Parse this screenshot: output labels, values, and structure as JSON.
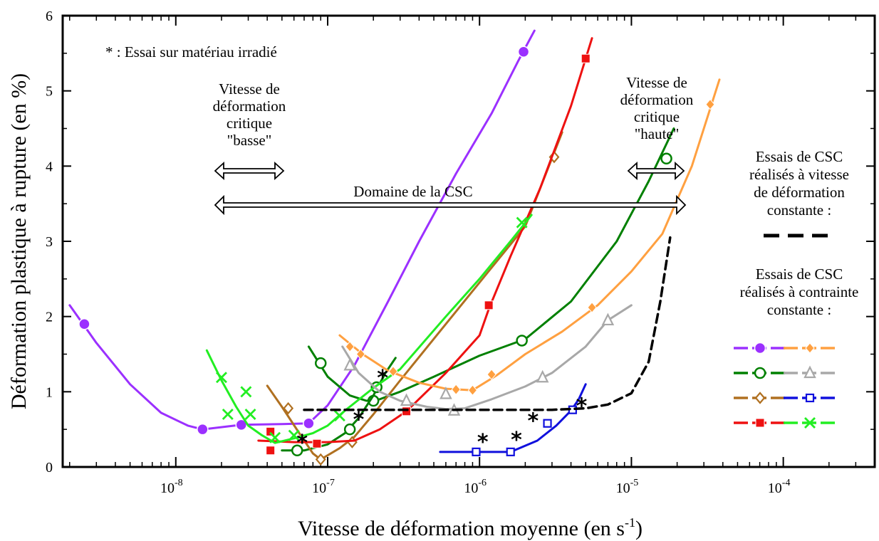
{
  "chart_data": {
    "type": "scatter",
    "title": "",
    "xlabel": "Vitesse de déformation moyenne (en s",
    "xlabel_sup": "-1",
    "xlabel_close": ")",
    "ylabel": "Déformation plastique à rupture (en %)",
    "xscale": "log",
    "xlim": [
      1.8e-09,
      0.0004
    ],
    "ylim": [
      0,
      6
    ],
    "x_ticks": [
      {
        "base": "10",
        "exp": "-8",
        "value": 1e-08
      },
      {
        "base": "10",
        "exp": "-7",
        "value": 1e-07
      },
      {
        "base": "10",
        "exp": "-6",
        "value": 1e-06
      },
      {
        "base": "10",
        "exp": "-5",
        "value": 1e-05
      },
      {
        "base": "10",
        "exp": "-4",
        "value": 0.0001
      }
    ],
    "y_ticks": [
      "0",
      "1",
      "2",
      "3",
      "4",
      "5",
      "6"
    ],
    "grid": false,
    "annotations": {
      "irradiated": "* : Essai sur matériau irradié",
      "low_critical": [
        "Vitesse de",
        "déformation",
        "critique",
        "\"basse\""
      ],
      "high_critical": [
        "Vitesse de",
        "déformation",
        "critique",
        "\"haute\""
      ],
      "domain": "Domaine de la CSC",
      "legend_constant_rate": [
        "Essais de CSC",
        "réalisés à vitesse",
        "de déformation",
        "constante :"
      ],
      "legend_constant_stress": [
        "Essais de CSC",
        "réalisés à contrainte",
        "constante :"
      ]
    },
    "series": [
      {
        "color": "#9b30ff",
        "marker": "circle-filled",
        "curve": [
          [
            2e-09,
            2.15
          ],
          [
            3e-09,
            1.65
          ],
          [
            5e-09,
            1.1
          ],
          [
            8e-09,
            0.72
          ],
          [
            1.2e-08,
            0.55
          ],
          [
            1.5e-08,
            0.5
          ],
          [
            2.7e-08,
            0.56
          ],
          [
            5e-08,
            0.57
          ],
          [
            7.5e-08,
            0.58
          ],
          [
            1e-07,
            0.82
          ],
          [
            1.5e-07,
            1.35
          ],
          [
            2.5e-07,
            2.2
          ],
          [
            4e-07,
            3.0
          ],
          [
            7e-07,
            3.9
          ],
          [
            1.2e-06,
            4.7
          ],
          [
            1.8e-06,
            5.4
          ],
          [
            2.3e-06,
            5.8
          ]
        ],
        "points": [
          [
            2.5e-09,
            1.9
          ],
          [
            1.5e-08,
            0.5
          ],
          [
            2.7e-08,
            0.56
          ],
          [
            7.5e-08,
            0.58
          ],
          [
            1.95e-06,
            5.52
          ]
        ]
      },
      {
        "color": "#008000",
        "marker": "circle-open",
        "curve": [
          [
            7.5e-08,
            1.6
          ],
          [
            1e-07,
            1.2
          ],
          [
            1.4e-07,
            0.95
          ],
          [
            1.8e-07,
            0.88
          ],
          [
            2.2e-07,
            0.9
          ],
          [
            3e-07,
            1.0
          ],
          [
            5e-07,
            1.2
          ],
          [
            1e-06,
            1.48
          ],
          [
            2e-06,
            1.7
          ],
          [
            4e-06,
            2.2
          ],
          [
            8e-06,
            3.0
          ],
          [
            1.3e-05,
            3.8
          ],
          [
            1.9e-05,
            4.5
          ]
        ],
        "points": [
          [
            9e-08,
            1.38
          ],
          [
            2e-07,
            0.88
          ],
          [
            1.9e-06,
            1.68
          ],
          [
            1.7e-05,
            4.1
          ]
        ]
      },
      {
        "color": "#008000",
        "marker": "circle-open",
        "curve": [
          [
            5e-08,
            0.22
          ],
          [
            7e-08,
            0.22
          ],
          [
            1e-07,
            0.3
          ],
          [
            1.3e-07,
            0.45
          ],
          [
            1.6e-07,
            0.65
          ],
          [
            2e-07,
            0.95
          ],
          [
            2.4e-07,
            1.25
          ],
          [
            2.8e-07,
            1.45
          ]
        ],
        "points": [
          [
            6.3e-08,
            0.22
          ],
          [
            1.4e-07,
            0.5
          ],
          [
            2.1e-07,
            1.06
          ]
        ]
      },
      {
        "color": "#b07020",
        "marker": "diamond-open",
        "curve": [
          [
            4e-08,
            1.08
          ],
          [
            5e-08,
            0.8
          ],
          [
            6.5e-08,
            0.45
          ],
          [
            8e-08,
            0.18
          ],
          [
            9e-08,
            0.1
          ],
          [
            1.2e-07,
            0.25
          ],
          [
            1.5e-07,
            0.4
          ],
          [
            2e-07,
            0.7
          ],
          [
            3e-07,
            1.15
          ],
          [
            6e-07,
            1.9
          ],
          [
            1.2e-06,
            2.65
          ],
          [
            2e-06,
            3.2
          ],
          [
            3.5e-06,
            4.45
          ]
        ],
        "points": [
          [
            5.5e-08,
            0.78
          ],
          [
            9e-08,
            0.1
          ],
          [
            1.45e-07,
            0.33
          ],
          [
            3.1e-06,
            4.12
          ]
        ]
      },
      {
        "color": "#ee1111",
        "marker": "square-filled",
        "curve": [
          [
            3.5e-08,
            0.35
          ],
          [
            6e-08,
            0.33
          ],
          [
            1e-07,
            0.33
          ],
          [
            1.5e-07,
            0.35
          ],
          [
            2.2e-07,
            0.5
          ],
          [
            3.3e-07,
            0.74
          ],
          [
            6e-07,
            1.25
          ],
          [
            1e-06,
            1.75
          ],
          [
            1.15e-06,
            2.1
          ],
          [
            1.6e-06,
            2.8
          ],
          [
            2.5e-06,
            3.7
          ],
          [
            4e-06,
            4.8
          ],
          [
            5.5e-06,
            5.7
          ]
        ],
        "points": [
          [
            4.2e-08,
            0.47
          ],
          [
            4.2e-08,
            0.22
          ],
          [
            8.5e-08,
            0.31
          ],
          [
            3.3e-07,
            0.74
          ],
          [
            1.15e-06,
            2.15
          ],
          [
            5e-06,
            5.43
          ]
        ]
      },
      {
        "color": "#22ee22",
        "marker": "x",
        "curve": [
          [
            1.6e-08,
            1.55
          ],
          [
            2e-08,
            1.15
          ],
          [
            2.5e-08,
            0.8
          ],
          [
            3e-08,
            0.55
          ],
          [
            3.7e-08,
            0.42
          ],
          [
            4.5e-08,
            0.32
          ],
          [
            6e-08,
            0.38
          ],
          [
            8e-08,
            0.45
          ],
          [
            1e-07,
            0.55
          ],
          [
            1.3e-07,
            0.75
          ],
          [
            2e-07,
            1.05
          ],
          [
            3e-07,
            1.3
          ],
          [
            6e-07,
            2.0
          ],
          [
            1e-06,
            2.5
          ],
          [
            1.6e-06,
            3.0
          ],
          [
            2.2e-06,
            3.35
          ]
        ],
        "points": [
          [
            2e-08,
            1.19
          ],
          [
            2.2e-08,
            0.7
          ],
          [
            2.9e-08,
            1.0
          ],
          [
            3.1e-08,
            0.7
          ],
          [
            4.5e-08,
            0.39
          ],
          [
            6e-08,
            0.42
          ],
          [
            1.2e-07,
            0.68
          ],
          [
            1.9e-06,
            3.25
          ]
        ]
      },
      {
        "color": "#ffa040",
        "marker": "diamond-filled",
        "curve": [
          [
            1.2e-07,
            1.75
          ],
          [
            1.7e-07,
            1.5
          ],
          [
            2.5e-07,
            1.28
          ],
          [
            4e-07,
            1.12
          ],
          [
            6e-07,
            1.04
          ],
          [
            9e-07,
            1.02
          ],
          [
            1.3e-06,
            1.22
          ],
          [
            2e-06,
            1.5
          ],
          [
            3.5e-06,
            1.8
          ],
          [
            6e-06,
            2.15
          ],
          [
            1e-05,
            2.6
          ],
          [
            1.6e-05,
            3.1
          ],
          [
            2.5e-05,
            4.0
          ],
          [
            3.8e-05,
            5.15
          ]
        ],
        "points": [
          [
            1.4e-07,
            1.6
          ],
          [
            1.65e-07,
            1.5
          ],
          [
            2.7e-07,
            1.27
          ],
          [
            7e-07,
            1.03
          ],
          [
            9e-07,
            1.02
          ],
          [
            1.2e-06,
            1.23
          ],
          [
            5.5e-06,
            2.12
          ],
          [
            3.3e-05,
            4.82
          ]
        ]
      },
      {
        "color": "#a8a8a8",
        "marker": "triangle-open",
        "curve": [
          [
            1.25e-07,
            1.6
          ],
          [
            1.6e-07,
            1.25
          ],
          [
            2.2e-07,
            1.0
          ],
          [
            3e-07,
            0.88
          ],
          [
            4.5e-07,
            0.8
          ],
          [
            6e-07,
            0.77
          ],
          [
            8e-07,
            0.78
          ],
          [
            1.2e-06,
            0.9
          ],
          [
            2e-06,
            1.07
          ],
          [
            3e-06,
            1.25
          ],
          [
            5e-06,
            1.6
          ],
          [
            7e-06,
            1.95
          ],
          [
            1e-05,
            2.15
          ]
        ],
        "points": [
          [
            1.4e-07,
            1.35
          ],
          [
            3.3e-07,
            0.88
          ],
          [
            6e-07,
            0.97
          ],
          [
            6.8e-07,
            0.75
          ],
          [
            2.6e-06,
            1.19
          ],
          [
            7e-06,
            1.95
          ]
        ]
      },
      {
        "color": "#1010dd",
        "marker": "square-open",
        "curve": [
          [
            5.5e-07,
            0.2
          ],
          [
            1e-06,
            0.2
          ],
          [
            1.6e-06,
            0.2
          ],
          [
            2.4e-06,
            0.35
          ],
          [
            3.2e-06,
            0.55
          ],
          [
            4e-06,
            0.75
          ],
          [
            4.5e-06,
            0.9
          ],
          [
            5e-06,
            1.1
          ]
        ],
        "points": [
          [
            9.5e-07,
            0.2
          ],
          [
            1.6e-06,
            0.2
          ],
          [
            2.8e-06,
            0.58
          ],
          [
            4.1e-06,
            0.76
          ]
        ]
      },
      {
        "color": "#000000",
        "marker": "none",
        "dash": true,
        "curve": [
          [
            7e-08,
            0.76
          ],
          [
            3e-07,
            0.76
          ],
          [
            1e-06,
            0.76
          ],
          [
            3e-06,
            0.76
          ],
          [
            5e-06,
            0.78
          ],
          [
            7e-06,
            0.83
          ],
          [
            1e-05,
            0.98
          ],
          [
            1.3e-05,
            1.4
          ],
          [
            1.55e-05,
            2.2
          ],
          [
            1.8e-05,
            3.05
          ]
        ],
        "points": []
      }
    ],
    "irradiated_points": [
      [
        6.8e-08,
        0.34
      ],
      [
        1.6e-07,
        0.65
      ],
      [
        2.3e-07,
        1.2
      ],
      [
        1.05e-06,
        0.35
      ],
      [
        1.75e-06,
        0.38
      ],
      [
        2.25e-06,
        0.63
      ],
      [
        4.7e-06,
        0.83
      ]
    ],
    "legend_entries": [
      {
        "color": "#9b30ff",
        "marker": "circle-filled"
      },
      {
        "color": "#ffa040",
        "marker": "diamond-filled"
      },
      {
        "color": "#008000",
        "marker": "circle-open"
      },
      {
        "color": "#a8a8a8",
        "marker": "triangle-open"
      },
      {
        "color": "#b07020",
        "marker": "diamond-open"
      },
      {
        "color": "#1010dd",
        "marker": "square-open"
      },
      {
        "color": "#ee1111",
        "marker": "square-filled"
      },
      {
        "color": "#22ee22",
        "marker": "x"
      }
    ]
  }
}
